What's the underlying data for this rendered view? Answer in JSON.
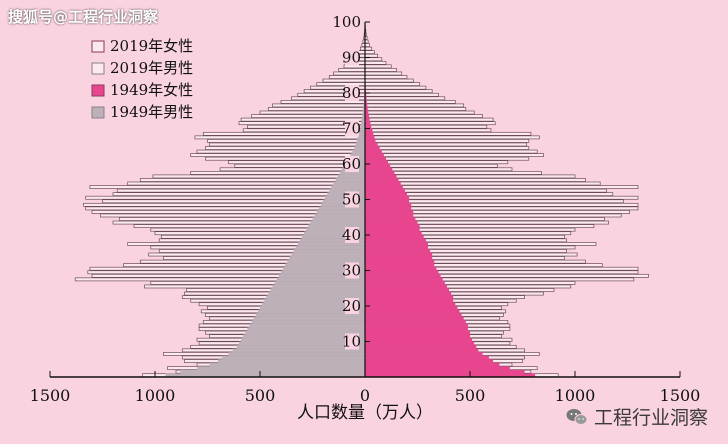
{
  "watermark_top": "搜狐号@工程行业洞察",
  "watermark_bottom": "工程行业洞察",
  "colors": {
    "background": "#f9d3df",
    "bar_2019_fill": "#fbe9ef",
    "bar_2019_stroke": "#6e4a58",
    "female_1949": "#e8458f",
    "male_1949": "#bdb0b8",
    "axis": "#111111"
  },
  "chart_data": {
    "type": "bar",
    "orientation": "horizontal-pyramid",
    "xlabel": "人口数量（万人）",
    "ylabel": "",
    "x_ticks": [
      "1500",
      "1000",
      "500",
      "0",
      "500",
      "1000",
      "1500"
    ],
    "y_ticks": [
      "10",
      "20",
      "30",
      "40",
      "50",
      "60",
      "70",
      "80",
      "90",
      "100"
    ],
    "xlim": [
      -1500,
      1500
    ],
    "ylim": [
      0,
      100
    ],
    "ages": [
      1,
      2,
      3,
      4,
      5,
      6,
      7,
      8,
      9,
      10,
      11,
      12,
      13,
      14,
      15,
      16,
      17,
      18,
      19,
      20,
      21,
      22,
      23,
      24,
      25,
      26,
      27,
      28,
      29,
      30,
      31,
      32,
      33,
      34,
      35,
      36,
      37,
      38,
      39,
      40,
      41,
      42,
      43,
      44,
      45,
      46,
      47,
      48,
      49,
      50,
      51,
      52,
      53,
      54,
      55,
      56,
      57,
      58,
      59,
      60,
      61,
      62,
      63,
      64,
      65,
      66,
      67,
      68,
      69,
      70,
      71,
      72,
      73,
      74,
      75,
      76,
      77,
      78,
      79,
      80,
      81,
      82,
      83,
      84,
      85,
      86,
      87,
      88,
      89,
      90,
      91,
      92,
      93,
      94,
      95,
      96,
      97,
      98,
      99,
      100
    ],
    "legend": [
      "2019年女性",
      "2019年男性",
      "1949年女性",
      "1949年男性"
    ],
    "series": [
      {
        "name": "2019年女性",
        "values": [
          920,
          790,
          820,
          700,
          750,
          760,
          830,
          760,
          720,
          690,
          700,
          650,
          660,
          690,
          690,
          680,
          640,
          660,
          670,
          650,
          680,
          720,
          760,
          850,
          900,
          980,
          1000,
          1280,
          1350,
          1300,
          1300,
          1130,
          1050,
          950,
          1010,
          960,
          1000,
          1100,
          960,
          950,
          980,
          1000,
          1090,
          1160,
          1140,
          1220,
          1260,
          1300,
          1300,
          1230,
          1300,
          1180,
          1150,
          1300,
          1120,
          1050,
          1000,
          840,
          700,
          630,
          680,
          780,
          850,
          820,
          780,
          770,
          780,
          830,
          790,
          600,
          580,
          620,
          610,
          560,
          520,
          480,
          470,
          430,
          380,
          350,
          320,
          290,
          260,
          230,
          200,
          175,
          150,
          125,
          100,
          80,
          60,
          45,
          32,
          22,
          15,
          10,
          6,
          4,
          2,
          1
        ]
      },
      {
        "name": "2019年男性",
        "values": [
          1060,
          900,
          940,
          800,
          860,
          870,
          960,
          870,
          830,
          790,
          800,
          740,
          760,
          790,
          790,
          770,
          740,
          760,
          780,
          750,
          790,
          830,
          870,
          860,
          850,
          1050,
          1020,
          1380,
          1300,
          1320,
          1310,
          1150,
          1070,
          960,
          1030,
          980,
          1020,
          1130,
          980,
          970,
          1000,
          1020,
          1100,
          1200,
          1170,
          1260,
          1300,
          1330,
          1340,
          1250,
          1330,
          1200,
          1180,
          1310,
          1130,
          1070,
          1010,
          830,
          690,
          620,
          650,
          760,
          830,
          800,
          760,
          740,
          750,
          810,
          770,
          580,
          560,
          600,
          590,
          540,
          500,
          460,
          440,
          400,
          350,
          320,
          290,
          260,
          230,
          200,
          170,
          150,
          125,
          100,
          80,
          60,
          45,
          32,
          22,
          15,
          10,
          6,
          4,
          2,
          1,
          0
        ]
      },
      {
        "name": "1949年女性",
        "values": [
          810,
          760,
          690,
          640,
          610,
          590,
          560,
          540,
          530,
          520,
          510,
          500,
          500,
          490,
          490,
          480,
          470,
          460,
          450,
          440,
          430,
          420,
          420,
          410,
          400,
          390,
          380,
          370,
          360,
          350,
          340,
          330,
          330,
          320,
          320,
          310,
          300,
          300,
          290,
          280,
          270,
          260,
          260,
          250,
          240,
          230,
          230,
          220,
          220,
          210,
          210,
          200,
          190,
          180,
          170,
          160,
          150,
          140,
          130,
          120,
          110,
          100,
          90,
          80,
          70,
          60,
          50,
          45,
          40,
          35,
          30,
          26,
          22,
          19,
          16,
          13,
          11,
          9,
          7,
          6,
          5,
          4,
          3,
          2,
          2,
          1,
          1,
          1,
          1,
          0,
          0,
          0,
          0,
          0,
          0,
          0,
          0,
          0,
          0,
          0
        ]
      },
      {
        "name": "1949年男性",
        "values": [
          950,
          880,
          800,
          740,
          700,
          680,
          650,
          630,
          610,
          600,
          590,
          580,
          570,
          560,
          550,
          540,
          530,
          520,
          510,
          500,
          490,
          480,
          470,
          460,
          450,
          440,
          430,
          420,
          410,
          400,
          390,
          380,
          370,
          360,
          350,
          340,
          330,
          320,
          310,
          300,
          290,
          280,
          270,
          260,
          250,
          240,
          230,
          220,
          210,
          200,
          190,
          180,
          170,
          160,
          150,
          140,
          130,
          120,
          110,
          100,
          90,
          80,
          70,
          60,
          50,
          45,
          40,
          35,
          30,
          26,
          22,
          19,
          16,
          13,
          11,
          9,
          7,
          6,
          5,
          4,
          3,
          2,
          2,
          1,
          1,
          1,
          1,
          0,
          0,
          0,
          0,
          0,
          0,
          0,
          0,
          0,
          0,
          0,
          0,
          0
        ]
      }
    ]
  }
}
